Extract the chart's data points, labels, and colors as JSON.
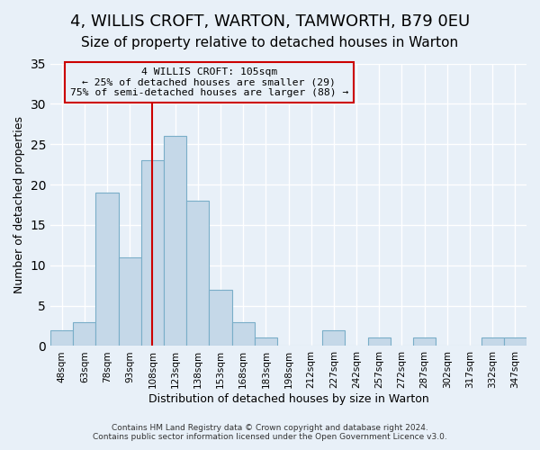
{
  "title": "4, WILLIS CROFT, WARTON, TAMWORTH, B79 0EU",
  "subtitle": "Size of property relative to detached houses in Warton",
  "xlabel": "Distribution of detached houses by size in Warton",
  "ylabel": "Number of detached properties",
  "bin_labels": [
    "48sqm",
    "63sqm",
    "78sqm",
    "93sqm",
    "108sqm",
    "123sqm",
    "138sqm",
    "153sqm",
    "168sqm",
    "183sqm",
    "198sqm",
    "212sqm",
    "227sqm",
    "242sqm",
    "257sqm",
    "272sqm",
    "287sqm",
    "302sqm",
    "317sqm",
    "332sqm",
    "347sqm"
  ],
  "bar_values": [
    2,
    3,
    19,
    11,
    23,
    26,
    18,
    7,
    3,
    1,
    0,
    0,
    2,
    0,
    1,
    0,
    1,
    0,
    0,
    1,
    1
  ],
  "ylim": [
    0,
    35
  ],
  "yticks": [
    0,
    5,
    10,
    15,
    20,
    25,
    30,
    35
  ],
  "bar_color": "#c5d8e8",
  "bar_edge_color": "#7aaec8",
  "vline_x": 4,
  "vline_color": "#cc0000",
  "annotation_title": "4 WILLIS CROFT: 105sqm",
  "annotation_line1": "← 25% of detached houses are smaller (29)",
  "annotation_line2": "75% of semi-detached houses are larger (88) →",
  "annotation_box_color": "#cc0000",
  "bg_color": "#e8f0f8",
  "footer_line1": "Contains HM Land Registry data © Crown copyright and database right 2024.",
  "footer_line2": "Contains public sector information licensed under the Open Government Licence v3.0.",
  "title_fontsize": 13,
  "subtitle_fontsize": 11
}
